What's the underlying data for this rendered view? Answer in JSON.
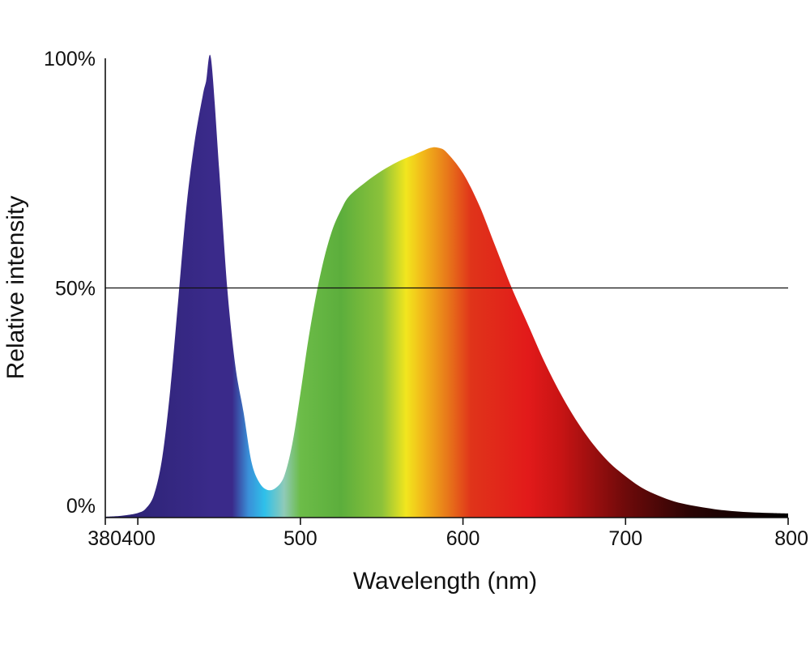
{
  "chart_data": {
    "type": "area",
    "title": "",
    "xlabel": "Wavelength (nm)",
    "ylabel": "Relative intensity",
    "xlim": [
      380,
      800
    ],
    "ylim": [
      0,
      100
    ],
    "x_ticks": [
      380,
      400,
      500,
      600,
      700,
      800
    ],
    "x_tick_labels": [
      "380",
      "400",
      "500",
      "600",
      "700",
      "800"
    ],
    "y_ticks": [
      0,
      50,
      100
    ],
    "y_tick_labels": [
      "0%",
      "50%",
      "100%"
    ],
    "grid": false,
    "reference_lines": [
      {
        "axis": "y",
        "value": 50
      }
    ],
    "fill": "visible spectrum color gradient",
    "series": [
      {
        "x": [
          380,
          390,
          400,
          405,
          410,
          415,
          420,
          425,
          430,
          435,
          440,
          442,
          445,
          450,
          455,
          460,
          465,
          470,
          475,
          480,
          485,
          490,
          495,
          500,
          505,
          510,
          515,
          520,
          525,
          530,
          540,
          550,
          560,
          570,
          580,
          585,
          590,
          600,
          610,
          620,
          630,
          640,
          650,
          660,
          670,
          680,
          690,
          700,
          710,
          720,
          730,
          740,
          750,
          760,
          770,
          780,
          790,
          800
        ],
        "y": [
          0.2,
          0.4,
          1,
          2,
          5,
          13,
          28,
          48,
          68,
          82,
          92,
          95,
          100,
          76,
          50,
          33,
          23,
          12,
          7.5,
          6,
          6.5,
          9,
          16,
          27,
          39,
          49,
          57,
          63,
          67,
          70,
          73,
          75.5,
          77.5,
          79,
          80.5,
          80.5,
          79.5,
          75,
          68,
          59,
          50,
          42,
          34,
          27,
          21,
          16,
          12,
          9,
          6.5,
          4.8,
          3.5,
          2.7,
          2.1,
          1.6,
          1.3,
          1.1,
          1.0,
          0.9
        ]
      }
    ],
    "gradient_stops": [
      {
        "wl": 380,
        "color": "#2a2270"
      },
      {
        "wl": 445,
        "color": "#3a2a8a"
      },
      {
        "wl": 458,
        "color": "#3a2a8a"
      },
      {
        "wl": 468,
        "color": "#3a8fd8"
      },
      {
        "wl": 478,
        "color": "#2fc0ea"
      },
      {
        "wl": 490,
        "color": "#8fcab8"
      },
      {
        "wl": 500,
        "color": "#6cbc48"
      },
      {
        "wl": 525,
        "color": "#5cae3c"
      },
      {
        "wl": 550,
        "color": "#8cc23a"
      },
      {
        "wl": 565,
        "color": "#f2e61e"
      },
      {
        "wl": 575,
        "color": "#f2ba1a"
      },
      {
        "wl": 590,
        "color": "#e87a1a"
      },
      {
        "wl": 605,
        "color": "#e0341a"
      },
      {
        "wl": 640,
        "color": "#e21a1a"
      },
      {
        "wl": 660,
        "color": "#c81414"
      },
      {
        "wl": 700,
        "color": "#6e0a0a"
      },
      {
        "wl": 740,
        "color": "#2a0404"
      },
      {
        "wl": 800,
        "color": "#000000"
      }
    ]
  }
}
